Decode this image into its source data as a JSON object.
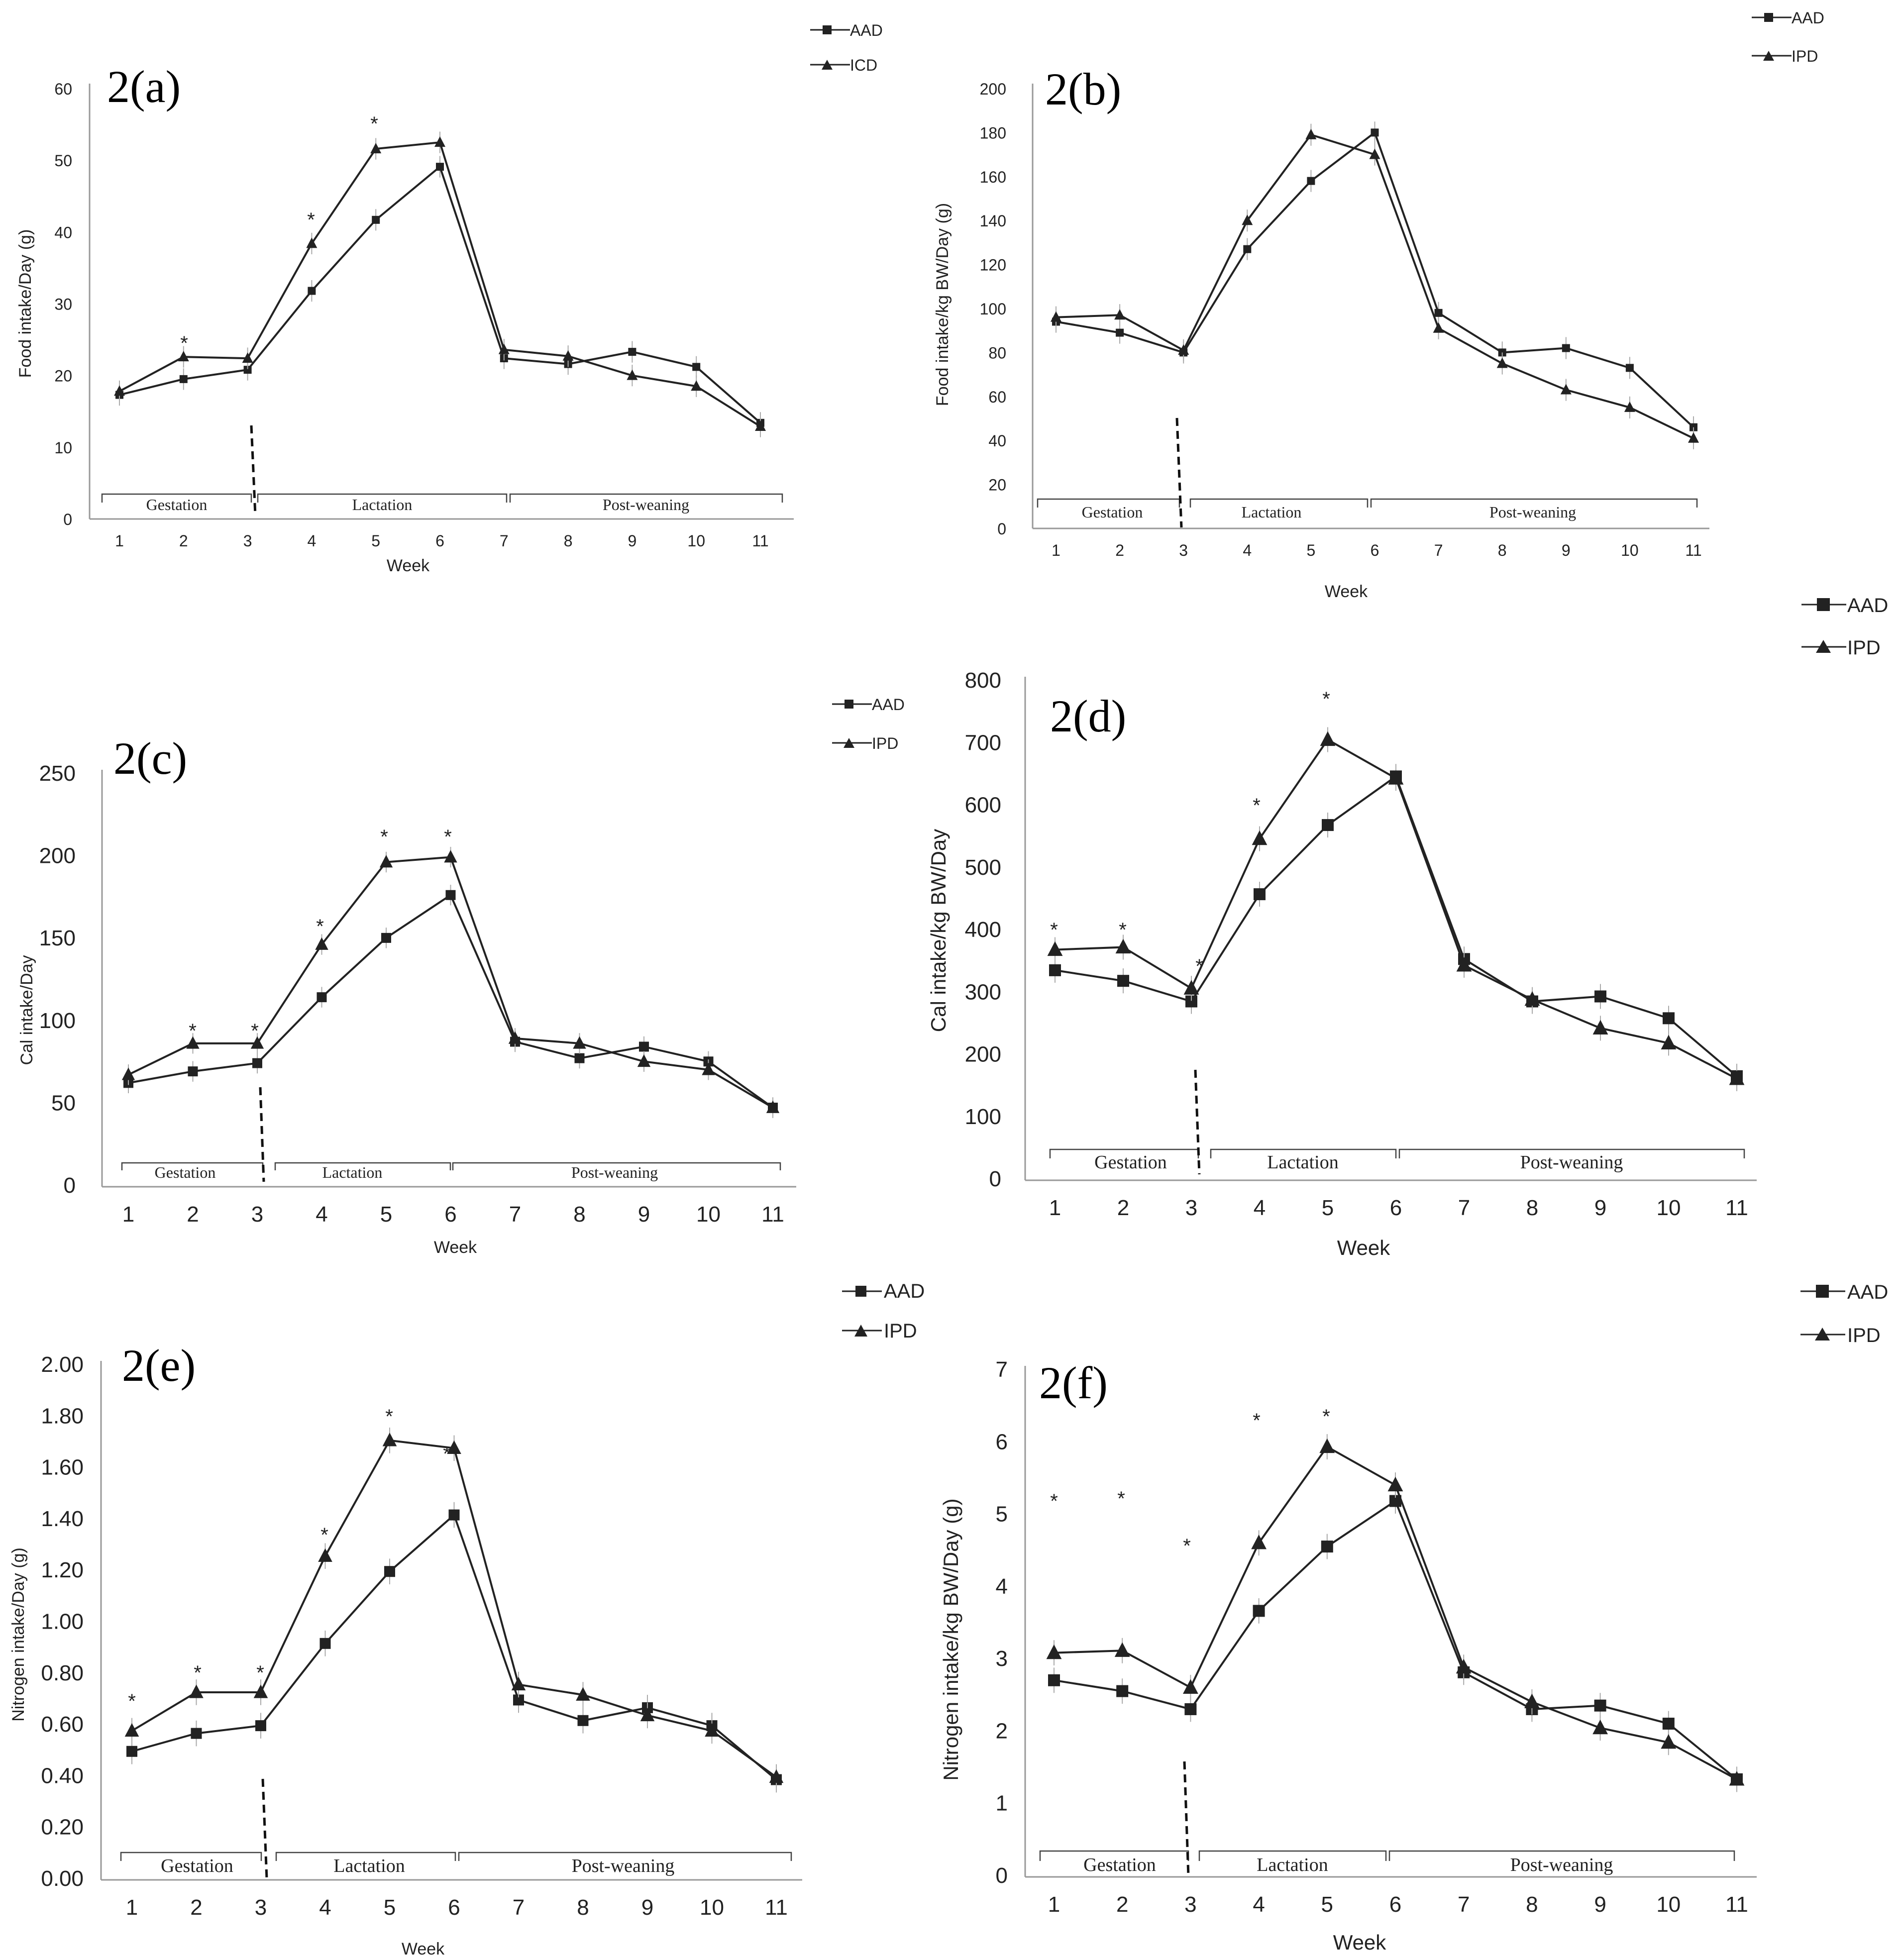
{
  "chart_data": [
    {
      "type": "line",
      "title": "2(a)",
      "xlabel": "Week",
      "ylabel": "Food intake/Day (g)",
      "x": [
        1,
        2,
        3,
        4,
        5,
        6,
        7,
        8,
        9,
        10,
        11
      ],
      "ylim": [
        0,
        60
      ],
      "yticks": [
        "0",
        "10",
        "20",
        "30",
        "40",
        "50",
        "60"
      ],
      "series": [
        {
          "name": "AAD",
          "values": [
            17.3,
            19.5,
            20.8,
            31.8,
            41.7,
            49.1,
            22.4,
            21.6,
            23.3,
            21.2,
            13.4
          ]
        },
        {
          "name": "ICD",
          "values": [
            17.8,
            22.6,
            22.4,
            38.4,
            51.6,
            52.5,
            23.6,
            22.7,
            20.0,
            18.5,
            12.9
          ]
        }
      ],
      "significance": [
        "*",
        "*",
        "*"
      ],
      "phases": [
        "Gestation",
        "Lactation",
        "Post-weaning"
      ]
    },
    {
      "type": "line",
      "title": "2(b)",
      "xlabel": "Week",
      "ylabel": "Food intake/kg BW/Day (g)",
      "x": [
        1,
        2,
        3,
        4,
        5,
        6,
        7,
        8,
        9,
        10,
        11
      ],
      "ylim": [
        0,
        200
      ],
      "yticks": [
        "0",
        "20",
        "40",
        "60",
        "80",
        "100",
        "120",
        "140",
        "160",
        "180",
        "200"
      ],
      "series": [
        {
          "name": "AAD",
          "values": [
            94,
            89,
            80,
            127,
            158,
            180,
            98,
            80,
            82,
            73,
            46
          ]
        },
        {
          "name": "IPD",
          "values": [
            96,
            97,
            81,
            140,
            179,
            170,
            91,
            75,
            63,
            55,
            41
          ]
        }
      ],
      "phases": [
        "Gestation",
        "Lactation",
        "Post-weaning"
      ]
    },
    {
      "type": "line",
      "title": "2(c)",
      "xlabel": "Week",
      "ylabel": "Cal intake/Day",
      "x": [
        1,
        2,
        3,
        4,
        5,
        6,
        7,
        8,
        9,
        10,
        11
      ],
      "ylim": [
        0,
        250
      ],
      "yticks": [
        "0",
        "50",
        "100",
        "150",
        "200",
        "250"
      ],
      "series": [
        {
          "name": "AAD",
          "values": [
            63,
            70,
            75,
            115,
            151,
            177,
            88,
            78,
            85,
            76,
            48
          ]
        },
        {
          "name": "IPD",
          "values": [
            68,
            87,
            87,
            147,
            197,
            200,
            90,
            87,
            76,
            71,
            48
          ]
        }
      ],
      "significance": [
        "*",
        "*",
        "*",
        "*",
        "*"
      ],
      "phases": [
        "Gestation",
        "Lactation",
        "Post-weaning"
      ]
    },
    {
      "type": "line",
      "title": "2(d)",
      "xlabel": "Week",
      "ylabel": "Cal intake/kg BW/Day",
      "x": [
        1,
        2,
        3,
        4,
        5,
        6,
        7,
        8,
        9,
        10,
        11
      ],
      "ylim": [
        0,
        800
      ],
      "yticks": [
        "0",
        "100",
        "200",
        "300",
        "400",
        "500",
        "600",
        "700",
        "800"
      ],
      "series": [
        {
          "name": "AAD",
          "values": [
            337,
            320,
            287,
            459,
            570,
            648,
            355,
            287,
            295,
            260,
            167
          ]
        },
        {
          "name": "IPD",
          "values": [
            370,
            374,
            308,
            548,
            707,
            645,
            345,
            290,
            244,
            220,
            163
          ]
        }
      ],
      "significance": [
        "*",
        "*",
        "*",
        "*",
        "*"
      ],
      "phases": [
        "Gestation",
        "Lactation",
        "Post-weaning"
      ]
    },
    {
      "type": "line",
      "title": "2(e)",
      "xlabel": "Week",
      "ylabel": "Nitrogen intake/Day (g)",
      "x": [
        1,
        2,
        3,
        4,
        5,
        6,
        7,
        8,
        9,
        10,
        11
      ],
      "ylim": [
        0,
        2.0
      ],
      "yticks": [
        "0.00",
        "0.20",
        "0.40",
        "0.60",
        "0.80",
        "1.00",
        "1.20",
        "1.40",
        "1.60",
        "1.80",
        "2.00"
      ],
      "series": [
        {
          "name": "AAD",
          "values": [
            0.5,
            0.57,
            0.6,
            0.92,
            1.2,
            1.42,
            0.7,
            0.62,
            0.67,
            0.6,
            0.39
          ]
        },
        {
          "name": "IPD",
          "values": [
            0.58,
            0.73,
            0.73,
            1.26,
            1.71,
            1.68,
            0.76,
            0.72,
            0.64,
            0.58,
            0.4
          ]
        }
      ],
      "significance": [
        "*",
        "*",
        "*",
        "*",
        "*",
        "*"
      ],
      "phases": [
        "Gestation",
        "Lactation",
        "Post-weaning"
      ]
    },
    {
      "type": "line",
      "title": "2(f)",
      "xlabel": "Week",
      "ylabel": "Nitrogen intake/kg BW/Day (g)",
      "x": [
        1,
        2,
        3,
        4,
        5,
        6,
        7,
        8,
        9,
        10,
        11
      ],
      "ylim": [
        0,
        7
      ],
      "yticks": [
        "0",
        "1",
        "2",
        "3",
        "4",
        "5",
        "6",
        "7"
      ],
      "series": [
        {
          "name": "AAD",
          "values": [
            2.72,
            2.57,
            2.32,
            3.68,
            4.57,
            5.2,
            2.83,
            2.32,
            2.37,
            2.12,
            1.35
          ]
        },
        {
          "name": "IPD",
          "values": [
            3.1,
            3.13,
            2.62,
            4.62,
            5.95,
            5.42,
            2.9,
            2.42,
            2.06,
            1.86,
            1.35
          ]
        }
      ],
      "significance": [
        "*",
        "*",
        "*",
        "*",
        "*"
      ],
      "phases": [
        "Gestation",
        "Lactation",
        "Post-weaning"
      ]
    }
  ]
}
